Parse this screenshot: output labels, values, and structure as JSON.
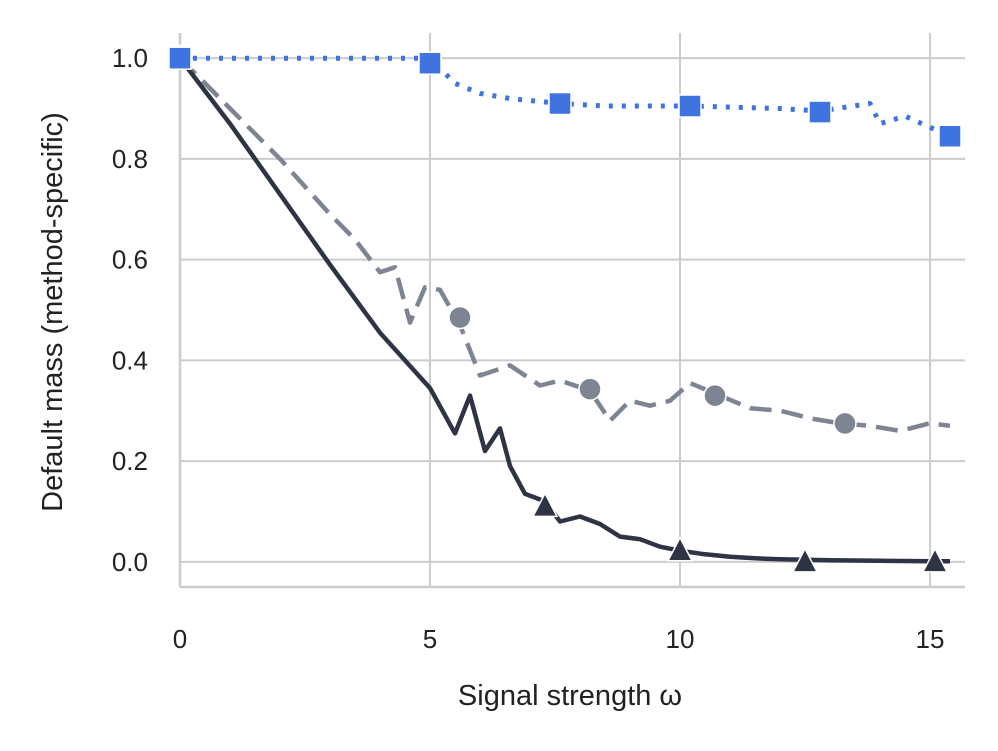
{
  "chart_data": {
    "type": "line",
    "title": "",
    "xlabel": "Signal strength ω",
    "ylabel": "Default mass (method-specific)",
    "xlim": [
      0,
      15.7
    ],
    "ylim": [
      -0.05,
      1.05
    ],
    "xticks": [
      0,
      5,
      10,
      15
    ],
    "xtick_labels": [
      "0",
      "5",
      "10",
      "15"
    ],
    "yticks": [
      0.0,
      0.2,
      0.4,
      0.6,
      0.8,
      1.0
    ],
    "ytick_labels": [
      "0.0",
      "0.2",
      "0.4",
      "0.6",
      "0.8",
      "1.0"
    ],
    "grid": true,
    "legend": "none",
    "series": [
      {
        "name": "series-blue-squares",
        "color": "#3f74e0",
        "line_style": "dotted",
        "marker": "square",
        "x": [
          0,
          5.0,
          5.5,
          6.0,
          6.6,
          7.6,
          8.5,
          10.2,
          12.0,
          12.8,
          13.8,
          14.0,
          14.5,
          15.4
        ],
        "y": [
          1.0,
          1.0,
          0.95,
          0.93,
          0.92,
          0.91,
          0.905,
          0.905,
          0.9,
          0.895,
          0.91,
          0.87,
          0.885,
          0.845
        ],
        "marker_x": [
          0,
          5.0,
          7.6,
          10.2,
          12.8,
          15.4
        ],
        "marker_y": [
          1.0,
          0.99,
          0.91,
          0.905,
          0.893,
          0.845
        ]
      },
      {
        "name": "series-gray-circles",
        "color": "#7d8593",
        "line_style": "dashed",
        "marker": "circle",
        "x": [
          0,
          1.0,
          2.0,
          3.0,
          3.5,
          4.0,
          4.3,
          4.6,
          4.9,
          5.2,
          5.6,
          6.0,
          6.6,
          7.2,
          7.6,
          8.2,
          8.6,
          9.0,
          9.4,
          9.8,
          10.2,
          10.8,
          11.4,
          12.0,
          12.6,
          13.2,
          13.8,
          14.4,
          15.0,
          15.4
        ],
        "y": [
          1.0,
          0.9,
          0.8,
          0.69,
          0.64,
          0.575,
          0.585,
          0.475,
          0.545,
          0.54,
          0.47,
          0.37,
          0.39,
          0.35,
          0.36,
          0.34,
          0.28,
          0.32,
          0.31,
          0.32,
          0.355,
          0.33,
          0.305,
          0.3,
          0.285,
          0.275,
          0.27,
          0.26,
          0.275,
          0.27
        ],
        "marker_x": [
          0,
          5.6,
          8.2,
          10.7,
          13.3
        ],
        "marker_y": [
          1.0,
          0.485,
          0.343,
          0.33,
          0.275
        ]
      },
      {
        "name": "series-dark-triangles",
        "color": "#2e3444",
        "line_style": "solid",
        "marker": "triangle",
        "x": [
          0,
          1.0,
          2.0,
          3.0,
          4.0,
          5.0,
          5.5,
          5.8,
          6.1,
          6.4,
          6.6,
          6.9,
          7.3,
          7.6,
          8.0,
          8.4,
          8.8,
          9.2,
          9.6,
          10.0,
          10.5,
          11.0,
          11.5,
          12.0,
          13.0,
          14.0,
          15.0,
          15.4
        ],
        "y": [
          1.0,
          0.87,
          0.73,
          0.59,
          0.455,
          0.345,
          0.255,
          0.33,
          0.22,
          0.265,
          0.19,
          0.135,
          0.12,
          0.08,
          0.09,
          0.075,
          0.05,
          0.045,
          0.03,
          0.022,
          0.015,
          0.01,
          0.007,
          0.005,
          0.003,
          0.002,
          0.001,
          0.001
        ],
        "marker_x": [
          0,
          7.3,
          10.0,
          12.5,
          15.1
        ],
        "marker_y": [
          1.0,
          0.11,
          0.022,
          0.0,
          0.0
        ]
      }
    ]
  }
}
